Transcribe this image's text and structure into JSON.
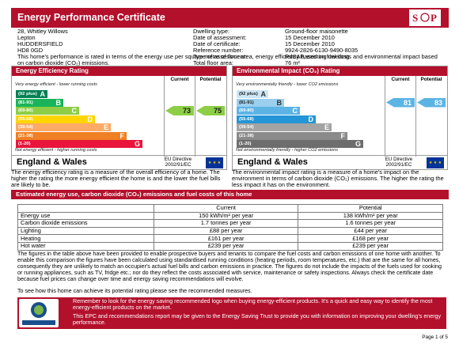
{
  "header": {
    "title": "Energy Performance Certificate",
    "logo_text": "HM Government"
  },
  "address": [
    "28, Whitley Willows",
    "Lepton",
    "HUDDERSFIELD",
    "HD8 0GD"
  ],
  "dwelling": {
    "labels": [
      "Dwelling type:",
      "Date of assessment:",
      "Date of certificate:",
      "Reference number:",
      "Type of assessment:",
      "Total floor area:"
    ],
    "values": [
      "Ground-floor maisonette",
      "15 December 2010",
      "15 December 2010",
      "9924-2826-6130-9490-8035",
      "RdSAP, existing dwelling",
      "76 m²"
    ]
  },
  "intro": "This home's performance is rated in terms of the energy use per square metre of floor area, energy efficiency based on fuel costs and environmental impact based on carbon dioxide (CO₂) emissions.",
  "efficiency_panel": {
    "title": "Energy Efficiency Rating",
    "col_current": "Current",
    "col_potential": "Potential",
    "top_note": "Very energy efficient - lower running costs",
    "bottom_note": "Not energy efficient - higher running costs",
    "bands": [
      {
        "range": "(92 plus)",
        "letter": "A",
        "color": "#008054"
      },
      {
        "range": "(81-91)",
        "letter": "B",
        "color": "#19b459"
      },
      {
        "range": "(69-80)",
        "letter": "C",
        "color": "#8dce46"
      },
      {
        "range": "(55-68)",
        "letter": "D",
        "color": "#ffd500"
      },
      {
        "range": "(39-54)",
        "letter": "E",
        "color": "#fcaa65"
      },
      {
        "range": "(21-38)",
        "letter": "F",
        "color": "#ef8023"
      },
      {
        "range": "(1-20)",
        "letter": "G",
        "color": "#e9153b"
      }
    ],
    "current_value": "73",
    "potential_value": "75",
    "arrow_color": "#8dce46",
    "region": "England & Wales",
    "directive": "EU Directive 2002/91/EC"
  },
  "impact_panel": {
    "title": "Environmental Impact (CO₂) Rating",
    "col_current": "Current",
    "col_potential": "Potential",
    "top_note": "Very environmentally friendly - lower CO2 emissions",
    "bottom_note": "Not environmentally friendly - higher CO2 emissions",
    "bands": [
      {
        "range": "(92 plus)",
        "letter": "A",
        "color": "#cde6f5"
      },
      {
        "range": "(81-91)",
        "letter": "B",
        "color": "#9bcfee"
      },
      {
        "range": "(69-80)",
        "letter": "C",
        "color": "#5cb4e5"
      },
      {
        "range": "(55-68)",
        "letter": "D",
        "color": "#2495d6"
      },
      {
        "range": "(39-54)",
        "letter": "E",
        "color": "#a3a3a3"
      },
      {
        "range": "(21-38)",
        "letter": "F",
        "color": "#8a8a8a"
      },
      {
        "range": "(1-20)",
        "letter": "G",
        "color": "#6d6d6d"
      }
    ],
    "current_value": "81",
    "potential_value": "83",
    "arrow_color": "#5cb4e5",
    "region": "England & Wales",
    "directive": "EU Directive 2002/91/EC"
  },
  "efficiency_desc": "The energy efficiency rating is a measure of the overall efficiency of a home. The higher the rating the more energy efficient the home is and the lower the fuel bills are likely to be.",
  "impact_desc": "The environmental impact rating is a measure of a home's impact on the environment in terms of carbon dioxide (CO₂) emissions. The higher the rating the less impact it has on the environment.",
  "costs_title": "Estimated energy use, carbon dioxide (CO₂) emissions and fuel costs of this home",
  "costs_table": {
    "headers": [
      "",
      "Current",
      "Potential"
    ],
    "rows": [
      [
        "Energy use",
        "150 kWh/m² per year",
        "138 kWh/m² per year"
      ],
      [
        "Carbon dioxide emissions",
        "1.7 tonnes per year",
        "1.6 tonnes per year"
      ],
      [
        "Lighting",
        "£88 per year",
        "£44 per year"
      ],
      [
        "Heating",
        "£161 per year",
        "£168 per year"
      ],
      [
        "Hot water",
        "£239 per year",
        "£239 per year"
      ]
    ]
  },
  "figures_para": "The figures in the table above have been provided to enable prospective buyers and tenants to compare the fuel costs and carbon emissions of one home with another. To enable this comparison the figures have been calculated using standardised running conditions (heating periods, room temperatures, etc.) that are the same for all homes, consequently they are unlikely to match an occupier's actual fuel bills and carbon emissions in practice. The figures do not include the impacts of the fuels used for cooking or running appliances, such as TV, fridge etc.; nor do they reflect the costs associated with service, maintenance or safety inspections. Always check the certificate date because fuel prices can change over time and energy saving recommendations will evolve.",
  "improve_para": "To see how this home can achieve its potential rating please see the recommended measures.",
  "footer": {
    "logo_text": "energy saving trust recommended",
    "line1": "Remember to look for the energy saving recommended logo when buying energy-efficient products. It's a quick and easy way to identify the most energy-efficient products on the market.",
    "line2": "This EPC and recommendations report may be given to the Energy Saving Trust to provide you with information on improving your dwelling's energy performance."
  },
  "page_number": "Page 1 of 5"
}
